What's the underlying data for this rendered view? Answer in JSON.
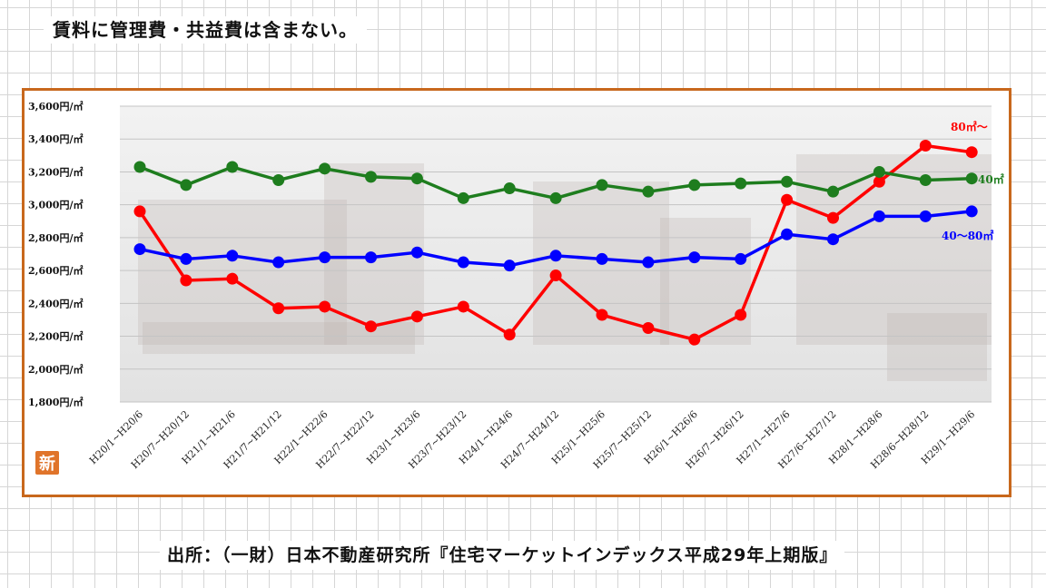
{
  "note": "賃料に管理費・共益費は含まない。",
  "source": "出所：（一財）日本不動産研究所『住宅マーケットインデックス平成29年上期版』",
  "badge": "新",
  "chart_data": {
    "type": "line",
    "title": "",
    "xlabel": "",
    "ylabel": "",
    "ylim": [
      1800,
      3600
    ],
    "yticks": [
      {
        "value": 3600,
        "label": "3,600円/㎡"
      },
      {
        "value": 3400,
        "label": "3,400円/㎡"
      },
      {
        "value": 3200,
        "label": "3,200円/㎡"
      },
      {
        "value": 3000,
        "label": "3,000円/㎡"
      },
      {
        "value": 2800,
        "label": "2,800円/㎡"
      },
      {
        "value": 2600,
        "label": "2,600円/㎡"
      },
      {
        "value": 2400,
        "label": "2,400円/㎡"
      },
      {
        "value": 2200,
        "label": "2,200円/㎡"
      },
      {
        "value": 2000,
        "label": "2,000円/㎡"
      },
      {
        "value": 1800,
        "label": "1,800円/㎡"
      }
    ],
    "grid": true,
    "categories": [
      "H20/1~H20/6",
      "H20/7~H20/12",
      "H21/1~H21/6",
      "H21/7~H21/12",
      "H22/1~H22/6",
      "H22/7~H22/12",
      "H23/1~H23/6",
      "H23/7~H23/12",
      "H24/1~H24/6",
      "H24/7~H24/12",
      "H25/1~H25/6",
      "H25/7~H25/12",
      "H26/1~H26/6",
      "H26/7~H26/12",
      "H27/1~H27/6",
      "H27/6~H27/12",
      "H28/1~H28/6",
      "H28/6~H28/12",
      "H29/1~H29/6"
    ],
    "series": [
      {
        "name": "80㎡～",
        "color": "#ff0000",
        "values": [
          2960,
          2540,
          2550,
          2370,
          2380,
          2260,
          2320,
          2380,
          2210,
          2570,
          2330,
          2250,
          2180,
          2330,
          3030,
          2920,
          3140,
          3360,
          3320
        ]
      },
      {
        "name": "40㎡",
        "color": "#1e7d1e",
        "values": [
          3230,
          3120,
          3230,
          3150,
          3220,
          3170,
          3160,
          3040,
          3100,
          3040,
          3120,
          3080,
          3120,
          3130,
          3140,
          3080,
          3200,
          3150,
          3160
        ]
      },
      {
        "name": "40～80㎡",
        "color": "#0000ff",
        "values": [
          2730,
          2670,
          2690,
          2650,
          2680,
          2680,
          2710,
          2650,
          2630,
          2690,
          2670,
          2650,
          2680,
          2670,
          2820,
          2790,
          2930,
          2930,
          2960
        ]
      }
    ]
  }
}
